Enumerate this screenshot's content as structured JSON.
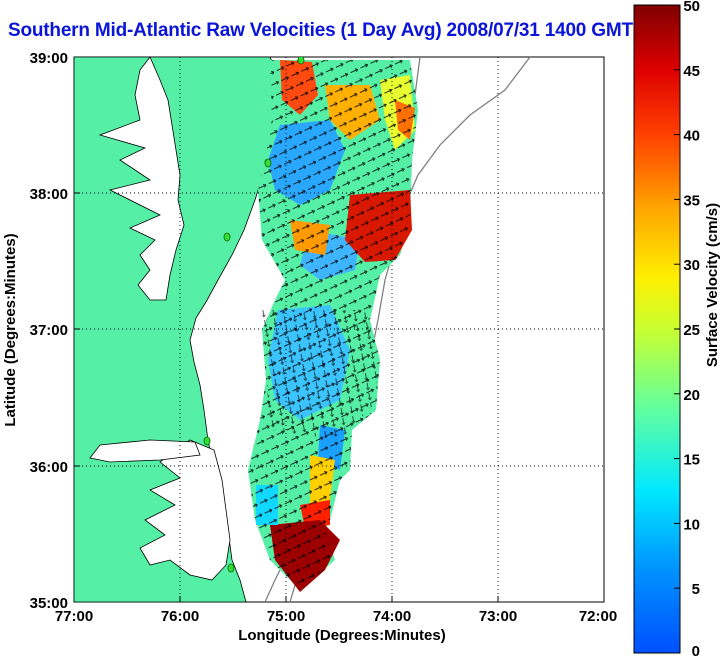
{
  "title": "Southern Mid-Atlantic Raw Velocities (1 Day Avg) 2008/07/31 1400 GMT",
  "x_axis": {
    "label": "Longitude (Degrees:Minutes)",
    "ticks": [
      "77:00",
      "76:00",
      "75:00",
      "74:00",
      "73:00",
      "72:00"
    ]
  },
  "y_axis": {
    "label": "Latitude (Degrees:Minutes)",
    "ticks": [
      "39:00",
      "38:00",
      "37:00",
      "36:00",
      "35:00"
    ]
  },
  "colorbar": {
    "label": "Surface Velocity (cm/s)",
    "ticks": [
      "0",
      "5",
      "10",
      "15",
      "20",
      "25",
      "30",
      "35",
      "40",
      "45",
      "50"
    ],
    "min": 0,
    "max": 50,
    "colormap": "jet"
  },
  "map": {
    "lon_range": [
      -77,
      -72
    ],
    "lat_range": [
      35,
      39
    ],
    "land_color": "#55f0a5",
    "grid": "dotted",
    "station_markers": 5,
    "station_marker_color": "#33dd33"
  }
}
